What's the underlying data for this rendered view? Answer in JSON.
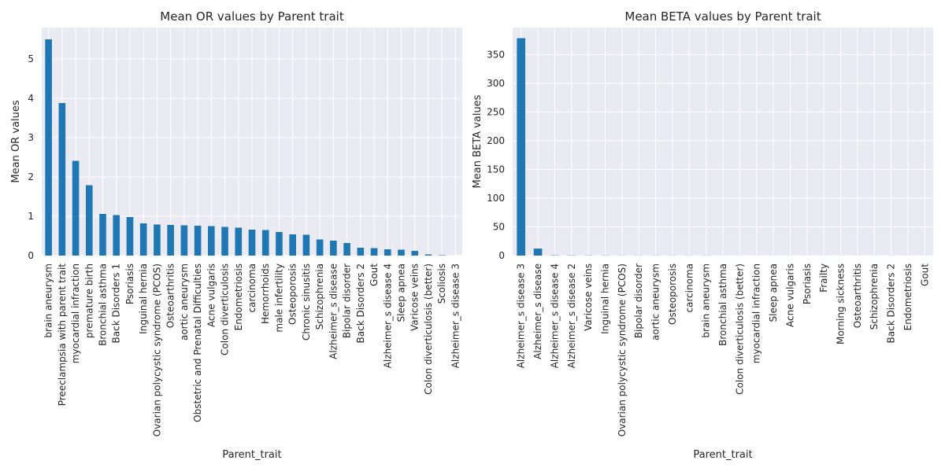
{
  "chart_data": [
    {
      "type": "bar",
      "title": "Mean OR values by Parent trait",
      "xlabel": "Parent_trait",
      "ylabel": "Mean OR values",
      "ylim": [
        0,
        5.8
      ],
      "yticks": [
        0,
        1,
        2,
        3,
        4,
        5
      ],
      "grid": true,
      "bar_color": "#1f77b4",
      "categories": [
        "brain aneurysm",
        "Preeclampsia with parent trait",
        "myocardial infraction",
        "premature birth",
        "Bronchial asthma",
        "Back Disorders 1",
        "Psoriasis",
        "Inguinal hernia",
        "Ovarian polycystic syndrome (PCOS)",
        "Osteoarthritis",
        "aortic aneurysm",
        "Obstetric and Prenatal Difficulties",
        "Acne vulgaris",
        "Colon diverticulosis",
        "Endometriosis",
        "carcinoma",
        "Hemorrhoids",
        "male infertility",
        "Osteoporosis",
        "Chronic sinusitis",
        "Schizophrenia",
        "Alzheimer_s disease",
        "Bipolar disorder",
        "Back Disorders 2",
        "Gout",
        "Alzheimer_s disease 4",
        "Sleep apnea",
        "Varicose veins",
        "Colon diverticulosis (better)",
        "Scoliosis",
        "Alzheimer_s disease 3"
      ],
      "values": [
        5.5,
        3.88,
        2.41,
        1.79,
        1.06,
        1.03,
        0.98,
        0.82,
        0.79,
        0.78,
        0.77,
        0.76,
        0.75,
        0.73,
        0.71,
        0.66,
        0.65,
        0.6,
        0.54,
        0.53,
        0.41,
        0.38,
        0.32,
        0.2,
        0.19,
        0.16,
        0.15,
        0.12,
        0.03,
        0.01,
        0.0
      ]
    },
    {
      "type": "bar",
      "title": "Mean BETA values by Parent trait",
      "xlabel": "Parent_trait",
      "ylabel": "Mean BETA values",
      "ylim": [
        0,
        397
      ],
      "yticks": [
        0,
        50,
        100,
        150,
        200,
        250,
        300,
        350
      ],
      "grid": true,
      "bar_color": "#1f77b4",
      "categories": [
        "Alzheimer_s disease 3",
        "Alzheimer_s disease",
        "Alzheimer_s disease 4",
        "Alzheimer_s disease 2",
        "Varicose veins",
        "Inguinal hernia",
        "Ovarian polycystic syndrome (PCOS)",
        "Bipolar disorder",
        "aortic aneurysm",
        "Osteoporosis",
        "carcinoma",
        "brain aneurysm",
        "Bronchial asthma",
        "Colon diverticulosis (better)",
        "myocardial infraction",
        "Sleep apnea",
        "Acne vulgaris",
        "Psoriasis",
        "Frailty",
        "Morning sickness",
        "Osteoarthritis",
        "Schizophrenia",
        "Back Disorders 2",
        "Endometriosis",
        "Gout"
      ],
      "values": [
        378.5,
        12.2,
        0.5,
        0.4,
        0.3,
        0.3,
        0.2,
        0.2,
        0.2,
        0.2,
        0.2,
        0.2,
        0.1,
        0.1,
        0.1,
        0.1,
        0.1,
        0.1,
        0.1,
        0.1,
        0.1,
        0.1,
        0.1,
        0.1,
        0.1
      ]
    }
  ]
}
